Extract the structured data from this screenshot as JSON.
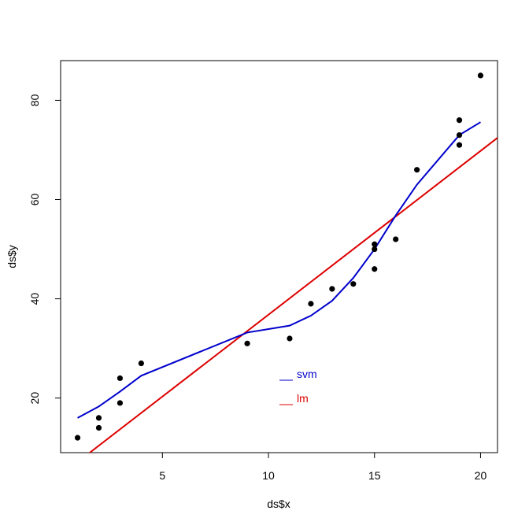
{
  "chart_data": {
    "type": "scatter",
    "title": "",
    "xlabel": "ds$x",
    "ylabel": "ds$y",
    "xlim": [
      0.2,
      20.8
    ],
    "ylim": [
      9.0,
      88.0
    ],
    "x_ticks": [
      5,
      10,
      15,
      20
    ],
    "y_ticks": [
      20,
      40,
      60,
      80
    ],
    "grid": false,
    "legend_position": "center-bottom",
    "points": {
      "x": [
        1,
        2,
        2,
        3,
        3,
        4,
        9,
        11,
        12,
        13,
        14,
        15,
        15,
        15,
        16,
        17,
        19,
        19,
        19,
        20
      ],
      "y": [
        12,
        14,
        16,
        19,
        24,
        27,
        31,
        32,
        39,
        42,
        43,
        46,
        50,
        51,
        52,
        66,
        71,
        73,
        76,
        85
      ],
      "color": "#000000"
    },
    "series": [
      {
        "name": "svm",
        "type": "line",
        "color": "#0000cc",
        "x": [
          1,
          2,
          3,
          4,
          9,
          11,
          12,
          13,
          14,
          15,
          16,
          17,
          19,
          20
        ],
        "y": [
          16.0,
          18.3,
          21.3,
          24.5,
          33.2,
          34.6,
          36.6,
          39.6,
          44.2,
          50.0,
          56.8,
          63.0,
          73.0,
          75.6
        ]
      },
      {
        "name": "lm",
        "type": "abline",
        "color": "#dd0000",
        "intercept": 3.8,
        "slope": 3.3
      }
    ]
  }
}
